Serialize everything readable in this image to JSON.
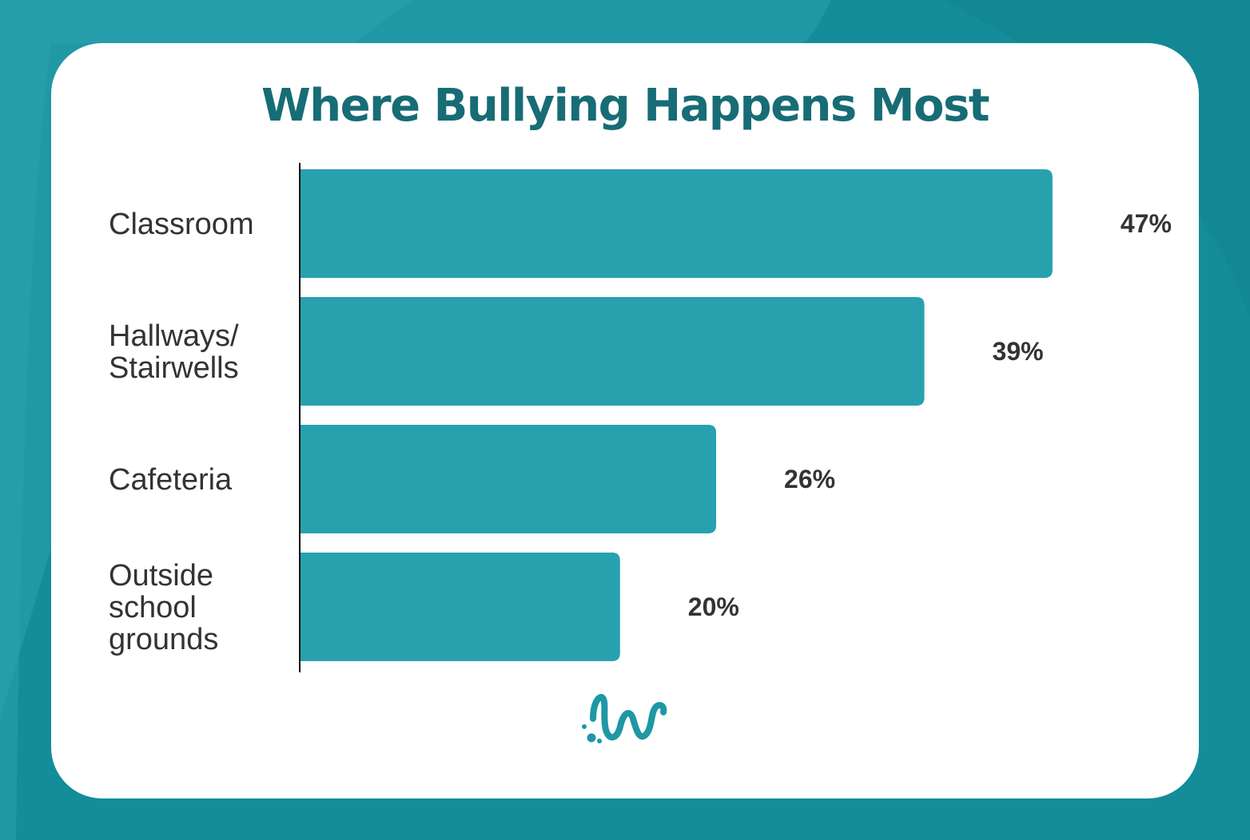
{
  "colors": {
    "page_background": "#148c99",
    "card_background": "#ffffff",
    "title": "#176c75",
    "bar": "#28a1ae",
    "label_text": "#333333",
    "axis": "#111111"
  },
  "icons": {
    "logo": "squiggle-logo-icon"
  },
  "chart_data": {
    "type": "bar",
    "orientation": "horizontal",
    "title": "Where Bullying Happens Most",
    "xlabel": "",
    "ylabel": "",
    "categories": [
      [
        "Classroom"
      ],
      [
        "Hallways/",
        "Stairwells"
      ],
      [
        "Cafeteria"
      ],
      [
        "Outside",
        "school",
        "grounds"
      ]
    ],
    "values": [
      47,
      39,
      26,
      20
    ],
    "value_labels": [
      "47%",
      "39%",
      "26%",
      "20%"
    ],
    "xlim": [
      0,
      50
    ],
    "grid": false,
    "legend": "none"
  }
}
